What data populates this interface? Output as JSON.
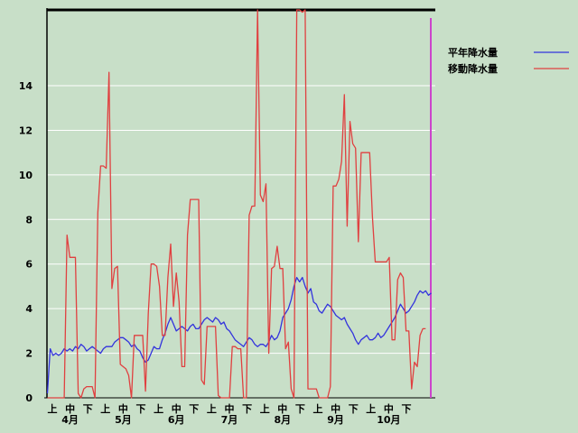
{
  "chart_data": {
    "type": "line",
    "y_ticks": [
      0,
      2,
      4,
      6,
      8,
      10,
      12,
      14
    ],
    "ylim": [
      0,
      17.4
    ],
    "x_count": 138,
    "x_sub_labels": [
      "上",
      "中",
      "下",
      "上",
      "中",
      "下",
      "上",
      "中",
      "下",
      "上",
      "中",
      "下",
      "上",
      "中",
      "下",
      "上",
      "中",
      "下",
      "上",
      "中",
      "下"
    ],
    "month_labels": [
      "4月",
      "5月",
      "6月",
      "7月",
      "8月",
      "9月",
      "10月"
    ],
    "grid": true,
    "legend_position": "right",
    "series": [
      {
        "name": "平年降水量",
        "color": "#3333dd",
        "values": [
          0.2,
          2.2,
          1.9,
          2.0,
          1.9,
          2.0,
          2.2,
          2.1,
          2.2,
          2.1,
          2.3,
          2.2,
          2.4,
          2.3,
          2.1,
          2.2,
          2.3,
          2.2,
          2.1,
          2.0,
          2.2,
          2.3,
          2.3,
          2.3,
          2.5,
          2.6,
          2.7,
          2.7,
          2.6,
          2.5,
          2.3,
          2.4,
          2.2,
          2.1,
          1.8,
          1.6,
          1.7,
          2.0,
          2.3,
          2.2,
          2.2,
          2.6,
          2.9,
          3.3,
          3.6,
          3.3,
          3.0,
          3.1,
          3.2,
          3.1,
          3.0,
          3.2,
          3.3,
          3.1,
          3.1,
          3.3,
          3.5,
          3.6,
          3.5,
          3.4,
          3.6,
          3.5,
          3.3,
          3.4,
          3.1,
          3.0,
          2.8,
          2.6,
          2.5,
          2.4,
          2.3,
          2.5,
          2.7,
          2.6,
          2.4,
          2.3,
          2.4,
          2.4,
          2.3,
          2.5,
          2.8,
          2.6,
          2.7,
          3.0,
          3.6,
          3.8,
          4.0,
          4.4,
          5.0,
          5.4,
          5.2,
          5.4,
          5.0,
          4.7,
          4.9,
          4.3,
          4.2,
          3.9,
          3.8,
          4.0,
          4.2,
          4.1,
          3.9,
          3.7,
          3.6,
          3.5,
          3.6,
          3.3,
          3.1,
          2.9,
          2.6,
          2.4,
          2.6,
          2.7,
          2.8,
          2.6,
          2.6,
          2.7,
          2.9,
          2.7,
          2.8,
          3.0,
          3.2,
          3.4,
          3.6,
          3.9,
          4.2,
          4.0,
          3.8,
          3.9,
          4.1,
          4.3,
          4.6,
          4.8,
          4.7,
          4.8,
          4.6,
          4.7
        ]
      },
      {
        "name": "移動降水量",
        "color": "#e04040",
        "values": [
          0.0,
          0.0,
          0.0,
          0.0,
          0.0,
          0.0,
          0.0,
          7.3,
          6.3,
          6.3,
          6.3,
          0.2,
          0.0,
          0.4,
          0.5,
          0.5,
          0.5,
          0.0,
          8.3,
          10.4,
          10.4,
          10.3,
          14.6,
          4.9,
          5.8,
          5.9,
          1.5,
          1.4,
          1.3,
          1.0,
          0.0,
          2.8,
          2.8,
          2.8,
          2.8,
          0.3,
          3.8,
          6.0,
          6.0,
          5.9,
          5.0,
          2.8,
          2.8,
          5.4,
          6.9,
          4.1,
          5.6,
          4.3,
          1.4,
          1.4,
          7.3,
          8.9,
          8.9,
          8.9,
          8.9,
          0.8,
          0.6,
          3.2,
          3.2,
          3.2,
          3.2,
          0.1,
          0.0,
          0.0,
          0.0,
          0.0,
          2.3,
          2.3,
          2.2,
          2.2,
          0.0,
          0.0,
          8.2,
          8.6,
          8.6,
          17.4,
          9.1,
          8.8,
          9.6,
          2.0,
          5.8,
          5.9,
          6.8,
          5.8,
          5.8,
          2.2,
          2.5,
          0.4,
          0.0,
          17.4,
          17.4,
          17.3,
          17.5,
          0.4,
          0.4,
          0.4,
          0.4,
          0.0,
          0.0,
          0.0,
          0.0,
          0.5,
          9.5,
          9.5,
          9.8,
          10.6,
          13.6,
          7.7,
          12.4,
          11.4,
          11.2,
          7.0,
          11.0,
          11.0,
          11.0,
          11.0,
          8.1,
          6.1,
          6.1,
          6.1,
          6.1,
          6.1,
          6.3,
          2.6,
          2.6,
          5.3,
          5.6,
          5.4,
          3.0,
          3.0,
          0.4,
          1.6,
          1.4,
          2.8,
          3.1,
          3.1
        ]
      }
    ]
  }
}
